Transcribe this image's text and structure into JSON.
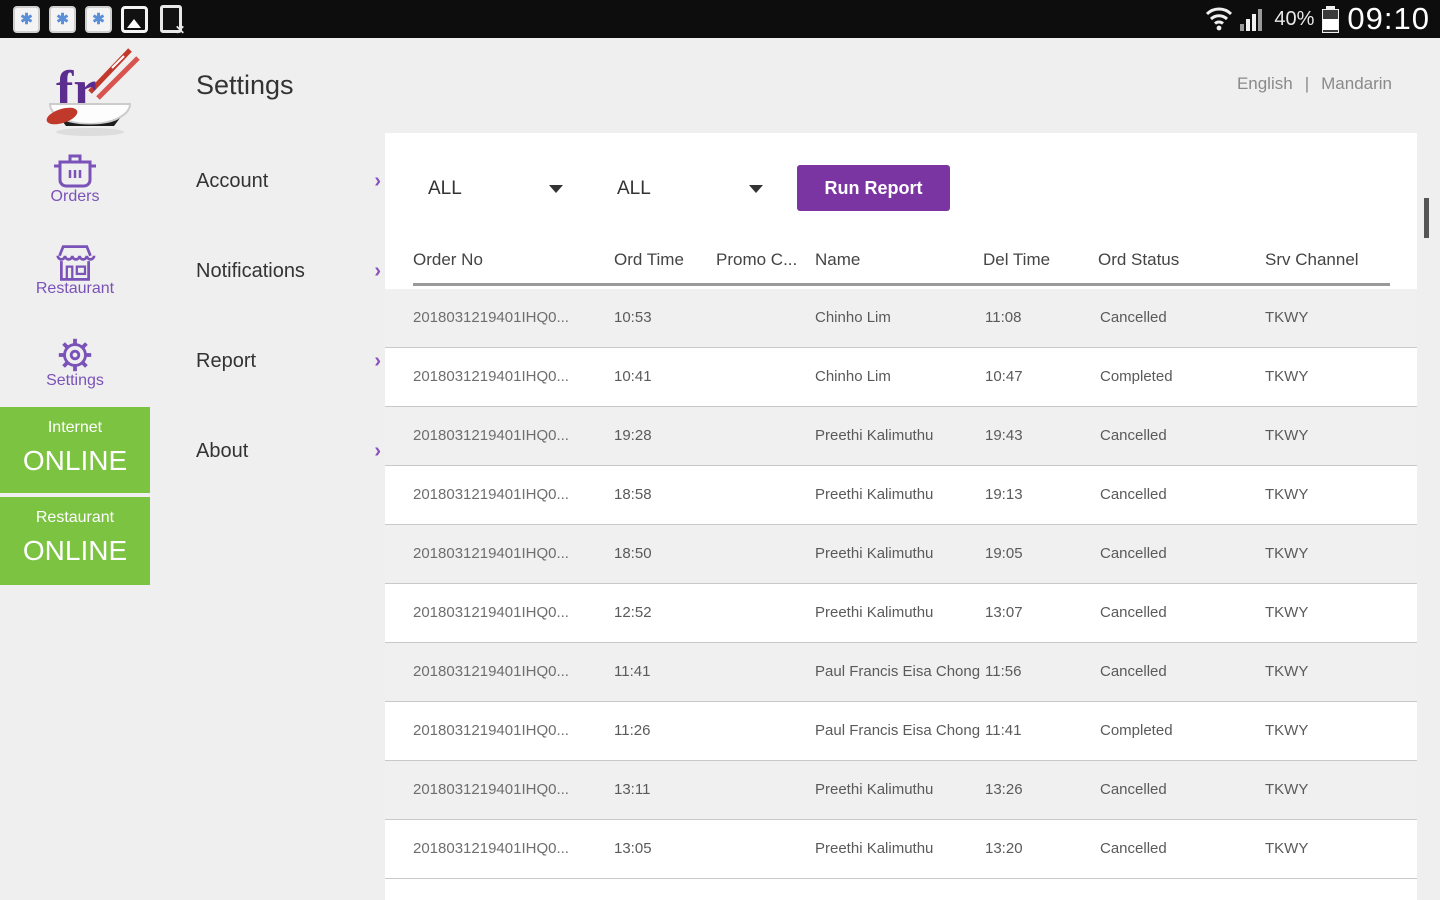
{
  "colors": {
    "accent_purple": "#7b35a3",
    "nav_purple": "#7a52b8",
    "online_green": "#7cc342",
    "statusbar_black": "#0d0d0d",
    "panel_white": "#ffffff",
    "row_shaded": "#f0f0f0"
  },
  "status_bar": {
    "time": "09:10",
    "battery_pct": "40%",
    "left_icons": [
      "app-notification-icon",
      "app-notification-icon",
      "app-notification-icon",
      "screenshot-icon",
      "file-x-icon"
    ],
    "right_icons": [
      "wifi-icon",
      "signal-icon",
      "battery-icon"
    ]
  },
  "sidebar": {
    "logo": "restaurant-bowl-logo",
    "items": [
      {
        "label": "Orders",
        "icon": "pot-icon"
      },
      {
        "label": "Restaurant",
        "icon": "storefront-icon"
      },
      {
        "label": "Settings",
        "icon": "gear-icon"
      }
    ],
    "badges": [
      {
        "title": "Internet",
        "status": "ONLINE"
      },
      {
        "title": "Restaurant",
        "status": "ONLINE"
      }
    ]
  },
  "settings_menu": {
    "title": "Settings",
    "items": [
      {
        "label": "Account"
      },
      {
        "label": "Notifications"
      },
      {
        "label": "Report"
      },
      {
        "label": "About"
      }
    ],
    "chevron": "›"
  },
  "language": {
    "option1": "English",
    "separator": "|",
    "option2": "Mandarin"
  },
  "report": {
    "filters": [
      {
        "value": "ALL"
      },
      {
        "value": "ALL"
      }
    ],
    "run_button_label": "Run Report",
    "table": {
      "columns": [
        "Order No",
        "Ord Time",
        "Promo C...",
        "Name",
        "Del Time",
        "Ord Status",
        "Srv Channel"
      ],
      "rows": [
        {
          "order_no": "2018031219401IHQ0...",
          "ord_time": "10:53",
          "promo": "",
          "name": "Chinho Lim",
          "del_time": "11:08",
          "status": "Cancelled",
          "channel": "TKWY"
        },
        {
          "order_no": "2018031219401IHQ0...",
          "ord_time": "10:41",
          "promo": "",
          "name": "Chinho Lim",
          "del_time": "10:47",
          "status": "Completed",
          "channel": "TKWY"
        },
        {
          "order_no": "2018031219401IHQ0...",
          "ord_time": "19:28",
          "promo": "",
          "name": "Preethi Kalimuthu",
          "del_time": "19:43",
          "status": "Cancelled",
          "channel": "TKWY"
        },
        {
          "order_no": "2018031219401IHQ0...",
          "ord_time": "18:58",
          "promo": "",
          "name": "Preethi Kalimuthu",
          "del_time": "19:13",
          "status": "Cancelled",
          "channel": "TKWY"
        },
        {
          "order_no": "2018031219401IHQ0...",
          "ord_time": "18:50",
          "promo": "",
          "name": "Preethi Kalimuthu",
          "del_time": "19:05",
          "status": "Cancelled",
          "channel": "TKWY"
        },
        {
          "order_no": "2018031219401IHQ0...",
          "ord_time": "12:52",
          "promo": "",
          "name": "Preethi Kalimuthu",
          "del_time": "13:07",
          "status": "Cancelled",
          "channel": "TKWY"
        },
        {
          "order_no": "2018031219401IHQ0...",
          "ord_time": "11:41",
          "promo": "",
          "name": "Paul Francis Eisa Chong",
          "del_time": "11:56",
          "status": "Cancelled",
          "channel": "TKWY"
        },
        {
          "order_no": "2018031219401IHQ0...",
          "ord_time": "11:26",
          "promo": "",
          "name": "Paul Francis Eisa Chong",
          "del_time": "11:41",
          "status": "Completed",
          "channel": "TKWY"
        },
        {
          "order_no": "2018031219401IHQ0...",
          "ord_time": "13:11",
          "promo": "",
          "name": "Preethi Kalimuthu",
          "del_time": "13:26",
          "status": "Cancelled",
          "channel": "TKWY"
        },
        {
          "order_no": "2018031219401IHQ0...",
          "ord_time": "13:05",
          "promo": "",
          "name": "Preethi Kalimuthu",
          "del_time": "13:20",
          "status": "Cancelled",
          "channel": "TKWY"
        }
      ]
    }
  }
}
